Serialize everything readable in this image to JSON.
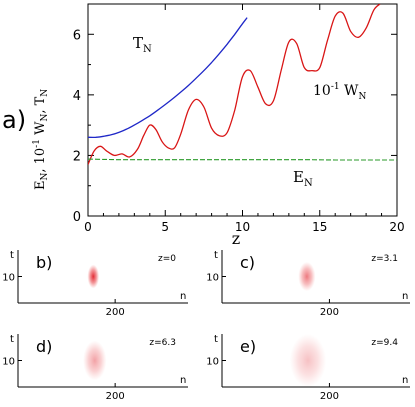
{
  "figure": {
    "panel_a_label": "a)",
    "line_labels": {
      "T": "T",
      "T_sub": "N",
      "W": "10",
      "W_sup": "-1",
      "W_main": " W",
      "W_sub": "N",
      "E": "E",
      "E_sub": "N"
    }
  },
  "chart_data": [
    {
      "type": "line",
      "panel": "a)",
      "xlabel": "z",
      "ylabel": "E_N, 10^-1 W_N, T_N",
      "xlim": [
        0,
        20
      ],
      "ylim": [
        0,
        7
      ],
      "xticks": [
        0,
        5,
        10,
        15,
        20
      ],
      "yticks": [
        0,
        2,
        4,
        6
      ],
      "grid": false,
      "colors": {
        "T_N": "#1f28c8",
        "W_N": "#d91616",
        "E_N": "#2a9a2a"
      },
      "series": [
        {
          "name": "T_N",
          "x": [
            0,
            0.5,
            1,
            1.5,
            2,
            2.5,
            3,
            3.5,
            4,
            4.5,
            5,
            5.5,
            6,
            6.5,
            7,
            7.5,
            8,
            8.5,
            9,
            9.5,
            10,
            10.3
          ],
          "y": [
            2.6,
            2.6,
            2.63,
            2.68,
            2.76,
            2.87,
            3.0,
            3.15,
            3.31,
            3.49,
            3.68,
            3.88,
            4.09,
            4.31,
            4.55,
            4.8,
            5.07,
            5.36,
            5.67,
            6.0,
            6.35,
            6.55
          ]
        },
        {
          "name": "W_N",
          "x": [
            0,
            0.4,
            0.8,
            1.2,
            1.7,
            2.2,
            2.7,
            3.2,
            3.6,
            4.0,
            4.4,
            4.8,
            5.2,
            5.6,
            6.0,
            6.5,
            7.0,
            7.5,
            8.0,
            8.5,
            9.0,
            9.5,
            10.0,
            10.5,
            11.0,
            11.5,
            12.0,
            12.5,
            13.0,
            13.5,
            14.0,
            14.5,
            15.0,
            15.5,
            16.0,
            16.5,
            17.0,
            17.5,
            18.0,
            18.5,
            18.9
          ],
          "y": [
            1.7,
            2.15,
            2.3,
            2.15,
            2.0,
            2.05,
            1.95,
            2.2,
            2.65,
            3.0,
            2.85,
            2.45,
            2.25,
            2.25,
            2.7,
            3.5,
            3.85,
            3.6,
            2.9,
            2.65,
            2.75,
            3.5,
            4.6,
            4.8,
            4.25,
            3.7,
            3.8,
            4.8,
            5.75,
            5.7,
            4.9,
            4.8,
            4.9,
            5.8,
            6.6,
            6.7,
            6.1,
            5.9,
            6.2,
            6.8,
            7.0
          ]
        },
        {
          "name": "E_N",
          "x": [
            0,
            1,
            2,
            3,
            4,
            6,
            8,
            10,
            12,
            14,
            16,
            18,
            20
          ],
          "y": [
            1.88,
            1.87,
            1.86,
            1.86,
            1.86,
            1.86,
            1.86,
            1.86,
            1.86,
            1.86,
            1.85,
            1.85,
            1.85
          ]
        }
      ]
    },
    {
      "type": "heatmap",
      "panel": "b)",
      "annotation": "z=0",
      "xlabel": "n",
      "ylabel": "t",
      "xticks": [
        200
      ],
      "yticks": [
        10
      ],
      "blob": {
        "n_center": 155,
        "t_center": 10,
        "n_halfwidth": 12,
        "t_halfwidth": 4.5
      }
    },
    {
      "type": "heatmap",
      "panel": "c)",
      "annotation": "z=3.1",
      "xlabel": "n",
      "ylabel": "t",
      "xticks": [
        200
      ],
      "yticks": [
        10
      ],
      "blob": {
        "n_center": 158,
        "t_center": 10,
        "n_halfwidth": 16,
        "t_halfwidth": 5.5
      }
    },
    {
      "type": "heatmap",
      "panel": "d)",
      "annotation": "z=6.3",
      "xlabel": "n",
      "ylabel": "t",
      "xticks": [
        200
      ],
      "yticks": [
        10
      ],
      "blob": {
        "n_center": 158,
        "t_center": 10,
        "n_halfwidth": 24,
        "t_halfwidth": 7.5
      }
    },
    {
      "type": "heatmap",
      "panel": "e)",
      "annotation": "z=9.4",
      "xlabel": "n",
      "ylabel": "t",
      "xticks": [
        200
      ],
      "yticks": [
        10
      ],
      "blob": {
        "n_center": 160,
        "t_center": 10,
        "n_halfwidth": 34,
        "t_halfwidth": 10
      }
    }
  ]
}
